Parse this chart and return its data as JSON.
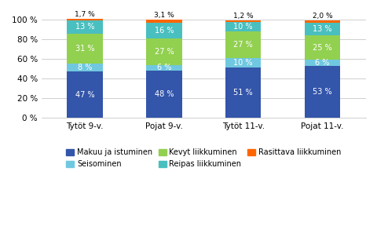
{
  "categories": [
    "Tytöt 9-v.",
    "Pojat 9-v.",
    "Tytöt 11-v.",
    "Pojat 11-v."
  ],
  "series_order": [
    "Makuu ja istuminen",
    "Seisominen",
    "Kevyt liikkuminen",
    "Reipas liikkuminen",
    "Rasittava liikkuminen"
  ],
  "series": {
    "Makuu ja istuminen": [
      47,
      48,
      51,
      53
    ],
    "Seisominen": [
      8,
      6,
      10,
      6
    ],
    "Kevyt liikkuminen": [
      31,
      27,
      27,
      25
    ],
    "Reipas liikkuminen": [
      13,
      16,
      10,
      13
    ],
    "Rasittava liikkuminen": [
      1.7,
      3.1,
      1.2,
      2.0
    ]
  },
  "colors": {
    "Makuu ja istuminen": "#3355AA",
    "Seisominen": "#70C8E0",
    "Kevyt liikkuminen": "#92D050",
    "Reipas liikkuminen": "#4ABFBF",
    "Rasittava liikkuminen": "#FF6600"
  },
  "labels": {
    "Makuu ja istuminen": [
      "47 %",
      "48 %",
      "51 %",
      "53 %"
    ],
    "Seisominen": [
      "8 %",
      "6 %",
      "10 %",
      "6 %"
    ],
    "Kevyt liikkuminen": [
      "31 %",
      "27 %",
      "27 %",
      "25 %"
    ],
    "Reipas liikkuminen": [
      "13 %",
      "16 %",
      "10 %",
      "13 %"
    ],
    "Rasittava liikkuminen": [
      "1,7 %",
      "3,1 %",
      "1,2 %",
      "2,0 %"
    ]
  },
  "label_colors": {
    "Makuu ja istuminen": "white",
    "Seisominen": "white",
    "Kevyt liikkuminen": "white",
    "Reipas liikkuminen": "white",
    "Rasittava liikkuminen": "black"
  },
  "background_color": "#FFFFFF",
  "yticks": [
    0,
    20,
    40,
    60,
    80,
    100
  ],
  "ytick_labels": [
    "0 %",
    "20 %",
    "40 %",
    "60 %",
    "80 %",
    "100 %"
  ],
  "bar_width": 0.45
}
